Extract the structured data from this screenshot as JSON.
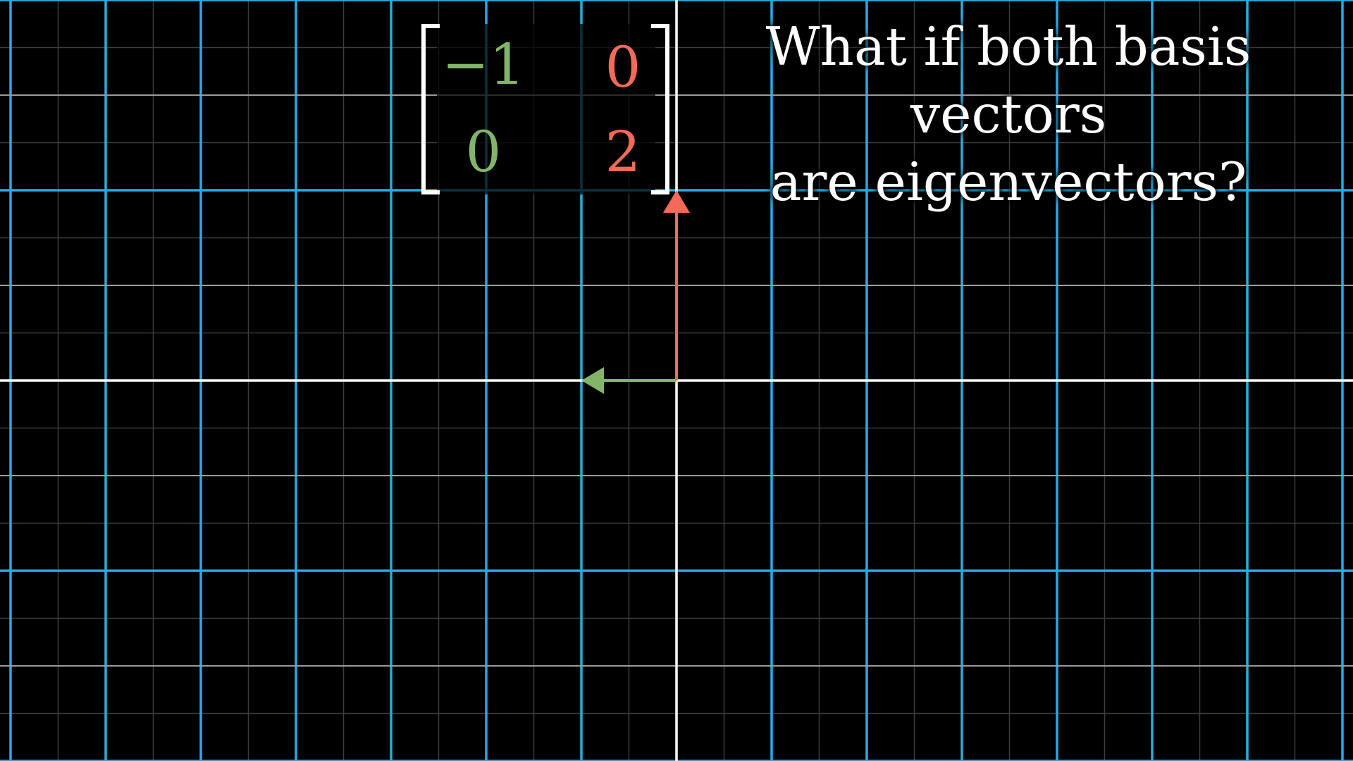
{
  "scene": {
    "background": "#000000",
    "grid_color": "#29abe2",
    "subgrid_color": "#3d3d3d",
    "axis_color": "#ffffff",
    "i_hat": {
      "label": "i-hat",
      "color": "#83b569",
      "vector": [
        -1,
        0
      ]
    },
    "j_hat": {
      "label": "j-hat",
      "color": "#f46a58",
      "vector": [
        0,
        2
      ]
    }
  },
  "matrix": {
    "rows": [
      [
        "−1",
        "0"
      ],
      [
        "0",
        "2"
      ]
    ]
  },
  "question": {
    "line1": "What if both basis vectors",
    "line2": "are eigenvectors?"
  }
}
